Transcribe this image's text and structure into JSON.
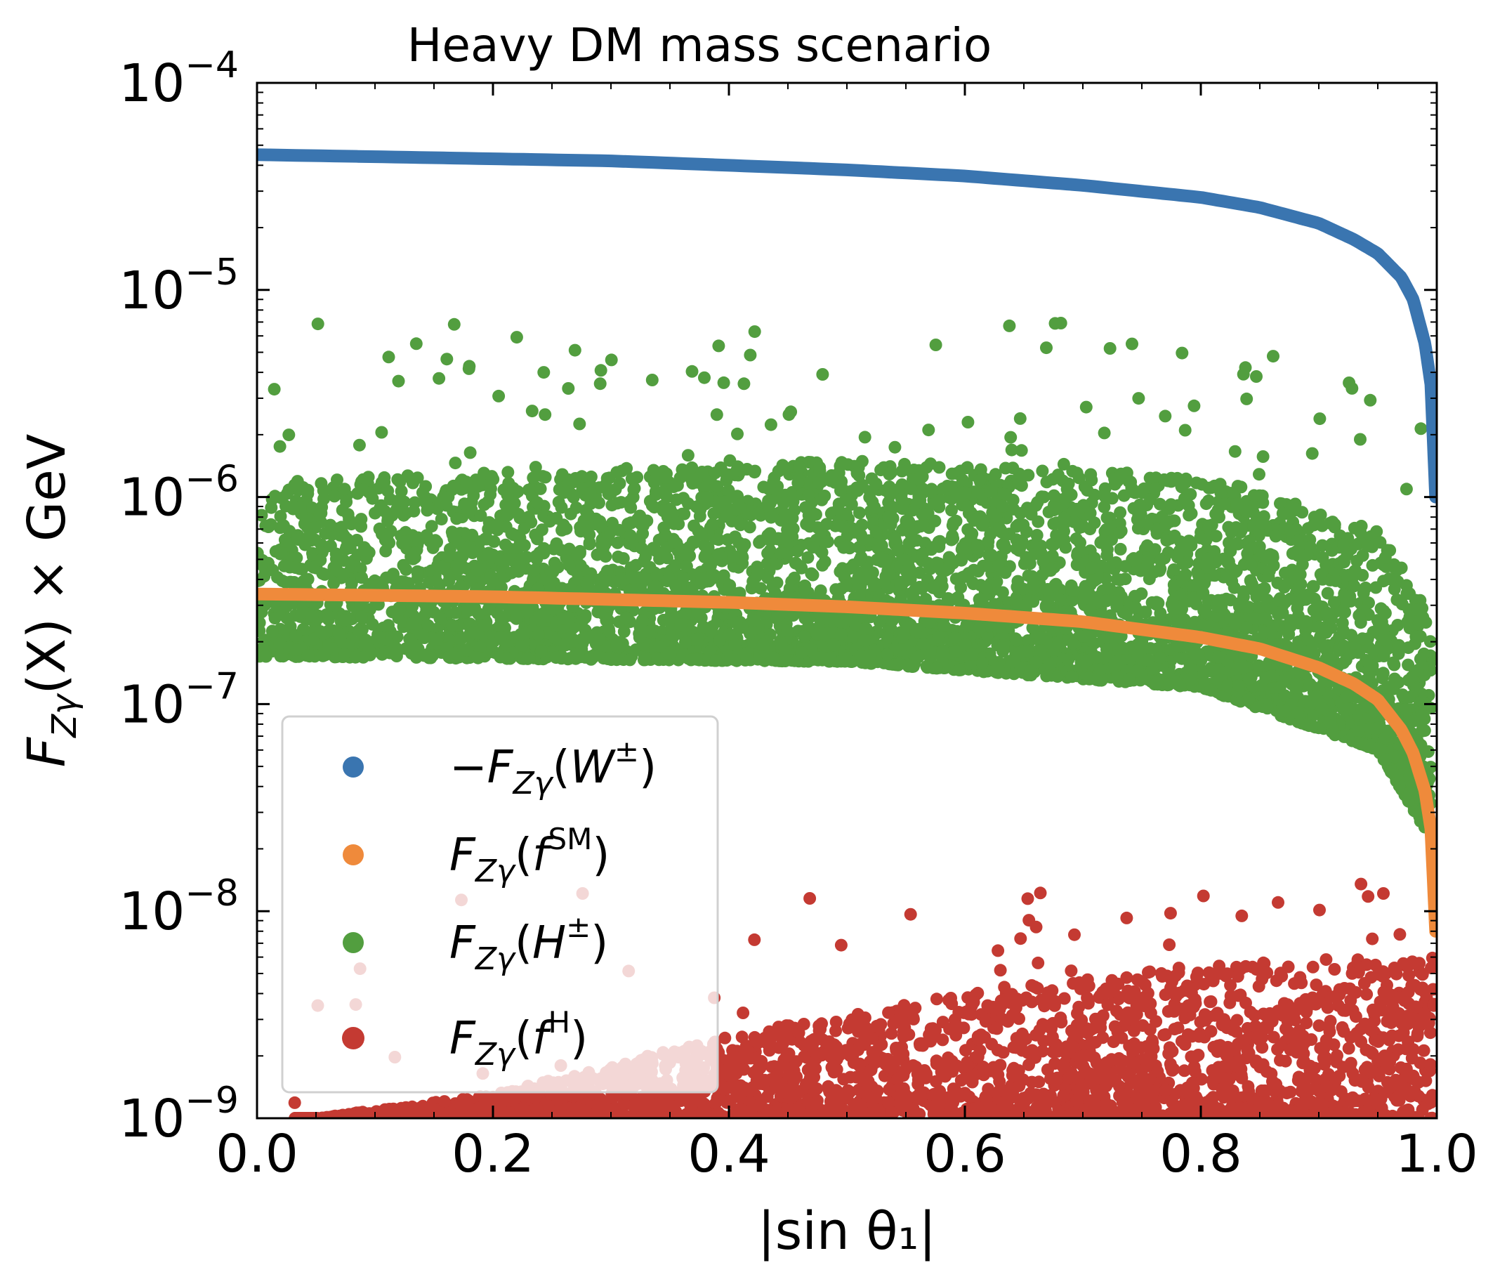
{
  "chart_data": {
    "type": "scatter",
    "title": "Heavy DM mass scenario",
    "xlabel": "|sin θ₁|",
    "ylabel": "F_Zγ(X) × GeV",
    "ylabel_parts": {
      "main": "F",
      "sub": "Zγ",
      "rest": "(X) × GeV"
    },
    "x_scale": "linear",
    "y_scale": "log",
    "xlim": [
      0.0,
      1.0
    ],
    "ylim": [
      1e-09,
      0.0001
    ],
    "x_ticks": [
      0.0,
      0.2,
      0.4,
      0.6,
      0.8,
      1.0
    ],
    "x_tick_labels": [
      "0.0",
      "0.2",
      "0.4",
      "0.6",
      "0.8",
      "1.0"
    ],
    "y_ticks": [
      1e-09,
      1e-08,
      1e-07,
      1e-06,
      1e-05,
      0.0001
    ],
    "y_tick_bases": [
      "10",
      "10",
      "10",
      "10",
      "10",
      "10"
    ],
    "y_tick_exponents": [
      "−9",
      "−8",
      "−7",
      "−6",
      "−5",
      "−4"
    ],
    "legend_position": "lower-left",
    "series": [
      {
        "name": "−F_Zγ(W±)",
        "legend": {
          "prefix": "−F",
          "sub": "Zγ",
          "open": "(W",
          "sup": "±",
          "close": ")"
        },
        "color": "#3a75b0",
        "kind": "curve",
        "x": [
          0.0,
          0.1,
          0.2,
          0.3,
          0.4,
          0.5,
          0.6,
          0.7,
          0.8,
          0.85,
          0.9,
          0.93,
          0.95,
          0.97,
          0.98,
          0.99,
          0.995,
          0.999
        ],
        "y": [
          4.5e-05,
          4.4e-05,
          4.3e-05,
          4.2e-05,
          4e-05,
          3.8e-05,
          3.55e-05,
          3.2e-05,
          2.8e-05,
          2.5e-05,
          2.1e-05,
          1.75e-05,
          1.5e-05,
          1.15e-05,
          9e-06,
          5.5e-06,
          3.5e-06,
          1e-06
        ]
      },
      {
        "name": "F_Zγ(f^SM)",
        "legend": {
          "prefix": "F",
          "sub": "Zγ",
          "open": "(f",
          "sup": "SM",
          "close": ")"
        },
        "color": "#ef8a3b",
        "kind": "curve",
        "x": [
          0.0,
          0.1,
          0.2,
          0.3,
          0.4,
          0.5,
          0.6,
          0.7,
          0.8,
          0.85,
          0.9,
          0.93,
          0.95,
          0.97,
          0.98,
          0.99,
          0.995,
          0.999
        ],
        "y": [
          3.4e-07,
          3.35e-07,
          3.3e-07,
          3.2e-07,
          3.1e-07,
          2.95e-07,
          2.75e-07,
          2.5e-07,
          2.1e-07,
          1.85e-07,
          1.5e-07,
          1.25e-07,
          1.05e-07,
          7.5e-08,
          5.8e-08,
          3.8e-08,
          2.5e-08,
          8e-09
        ]
      },
      {
        "name": "F_Zγ(H±)",
        "legend": {
          "prefix": "F",
          "sub": "Zγ",
          "open": "(H",
          "sup": "±",
          "close": ")"
        },
        "color": "#529e3f",
        "kind": "scatter-band",
        "x_range": [
          0.0,
          0.995
        ],
        "band_lower_at_x": {
          "x": [
            0.0,
            0.5,
            0.8,
            0.95,
            0.99
          ],
          "y": [
            1.7e-07,
            1.6e-07,
            1.2e-07,
            6e-08,
            2.5e-08
          ]
        },
        "band_upper_at_x": {
          "x": [
            0.0,
            0.5,
            0.8,
            0.95,
            0.99
          ],
          "y": [
            1.2e-06,
            1.5e-06,
            1.3e-06,
            7e-07,
            3e-07
          ]
        },
        "outlier_max": 7e-06
      },
      {
        "name": "F_Zγ(f^H)",
        "legend": {
          "prefix": "F",
          "sub": "Zγ",
          "open": "(f",
          "sup": "H",
          "close": ")"
        },
        "color": "#c43a32",
        "kind": "scatter-band",
        "x_range": [
          0.03,
          0.998
        ],
        "band_lower_at_x": {
          "x": [
            0.0,
            1.0
          ],
          "y": [
            1e-09,
            1e-09
          ]
        },
        "band_upper_at_x": {
          "x": [
            0.05,
            0.2,
            0.4,
            0.6,
            0.8,
            0.95
          ],
          "y": [
            1e-09,
            1.3e-09,
            2.5e-09,
            4e-09,
            5.5e-09,
            6e-09
          ]
        },
        "outlier_max": 1.4e-08
      }
    ]
  }
}
